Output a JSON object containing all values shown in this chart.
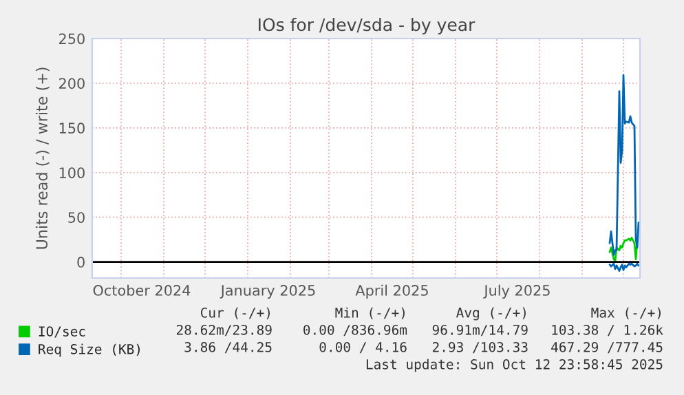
{
  "chart_data": {
    "type": "line",
    "title": "IOs for /dev/sda - by year",
    "ylabel": "Units read (-) / write (+)",
    "xlim": [
      "2024-09-10",
      "2025-10-13"
    ],
    "ylim": [
      -18,
      250
    ],
    "yticks": [
      0,
      50,
      100,
      150,
      200,
      250
    ],
    "xticks": [
      {
        "value": "2024-10-01",
        "label": null
      },
      {
        "value": "2024-10-16",
        "label": "October 2024"
      },
      {
        "value": "2024-11-01",
        "label": null
      },
      {
        "value": "2024-12-01",
        "label": null
      },
      {
        "value": "2025-01-01",
        "label": null
      },
      {
        "value": "2025-01-16",
        "label": "January 2025"
      },
      {
        "value": "2025-02-01",
        "label": null
      },
      {
        "value": "2025-03-01",
        "label": null
      },
      {
        "value": "2025-04-01",
        "label": null
      },
      {
        "value": "2025-04-16",
        "label": "April 2025"
      },
      {
        "value": "2025-05-01",
        "label": null
      },
      {
        "value": "2025-06-01",
        "label": null
      },
      {
        "value": "2025-07-01",
        "label": null
      },
      {
        "value": "2025-07-16",
        "label": "July 2025"
      },
      {
        "value": "2025-08-01",
        "label": null
      },
      {
        "value": "2025-09-01",
        "label": null
      },
      {
        "value": "2025-10-01",
        "label": null
      }
    ],
    "grid": true,
    "legend": "bottom left",
    "ref_lines": [
      {
        "axis": "y",
        "value": 0,
        "color": "#000000"
      }
    ],
    "series": [
      {
        "name": "IO/sec",
        "color": "#00cc00",
        "x": [
          "2025-09-21",
          "2025-09-22",
          "2025-09-24",
          "2025-09-25",
          "2025-09-26",
          "2025-09-28",
          "2025-09-29",
          "2025-09-30",
          "2025-10-01",
          "2025-10-02",
          "2025-10-03",
          "2025-10-05",
          "2025-10-06",
          "2025-10-07",
          "2025-10-09",
          "2025-10-10",
          "2025-10-11"
        ],
        "values": [
          11,
          16,
          3,
          1,
          16,
          13,
          18,
          16,
          21,
          24,
          24,
          26,
          24,
          27,
          21,
          3,
          24
        ]
      },
      {
        "name": "Req Size (KB)",
        "color": "#0066b3",
        "x": [
          "2025-09-21",
          "2025-09-22",
          "2025-09-24",
          "2025-09-25",
          "2025-09-26",
          "2025-09-28",
          "2025-09-29",
          "2025-09-30",
          "2025-10-01",
          "2025-10-02",
          "2025-10-03",
          "2025-10-05",
          "2025-10-06",
          "2025-10-07",
          "2025-10-09",
          "2025-10-10",
          "2025-10-11",
          "2025-10-12"
        ],
        "values": [
          21,
          34,
          8,
          13,
          13,
          191,
          111,
          124,
          209,
          155,
          157,
          156,
          163,
          156,
          152,
          26,
          16,
          44
        ]
      },
      {
        "color": "#0066b3",
        "x": [
          "2025-09-21",
          "2025-09-22",
          "2025-09-24",
          "2025-09-25",
          "2025-09-26",
          "2025-09-28",
          "2025-09-29",
          "2025-09-30",
          "2025-10-01",
          "2025-10-02",
          "2025-10-03",
          "2025-10-05",
          "2025-10-06",
          "2025-10-07",
          "2025-10-09",
          "2025-10-10",
          "2025-10-11",
          "2025-10-12"
        ],
        "values": [
          -3,
          -5,
          -2,
          -8,
          -4,
          -10,
          -6,
          -3,
          -9,
          -4,
          -6,
          -2,
          -3,
          -2,
          -5,
          -4,
          -2,
          -4
        ]
      }
    ],
    "annotations": [
      "Cur (-/+)",
      "Min (-/+)",
      "Avg (-/+)",
      "Max (-/+)",
      "28.62m/23.89",
      "0.00 /836.96m",
      "96.91m/14.79",
      "103.38 / 1.26k",
      "3.86 /44.25",
      "0.00 / 4.16",
      "2.93 /103.33",
      "467.29 /777.45",
      "Last update: Sun Oct 12 23:58:45 2025"
    ]
  }
}
